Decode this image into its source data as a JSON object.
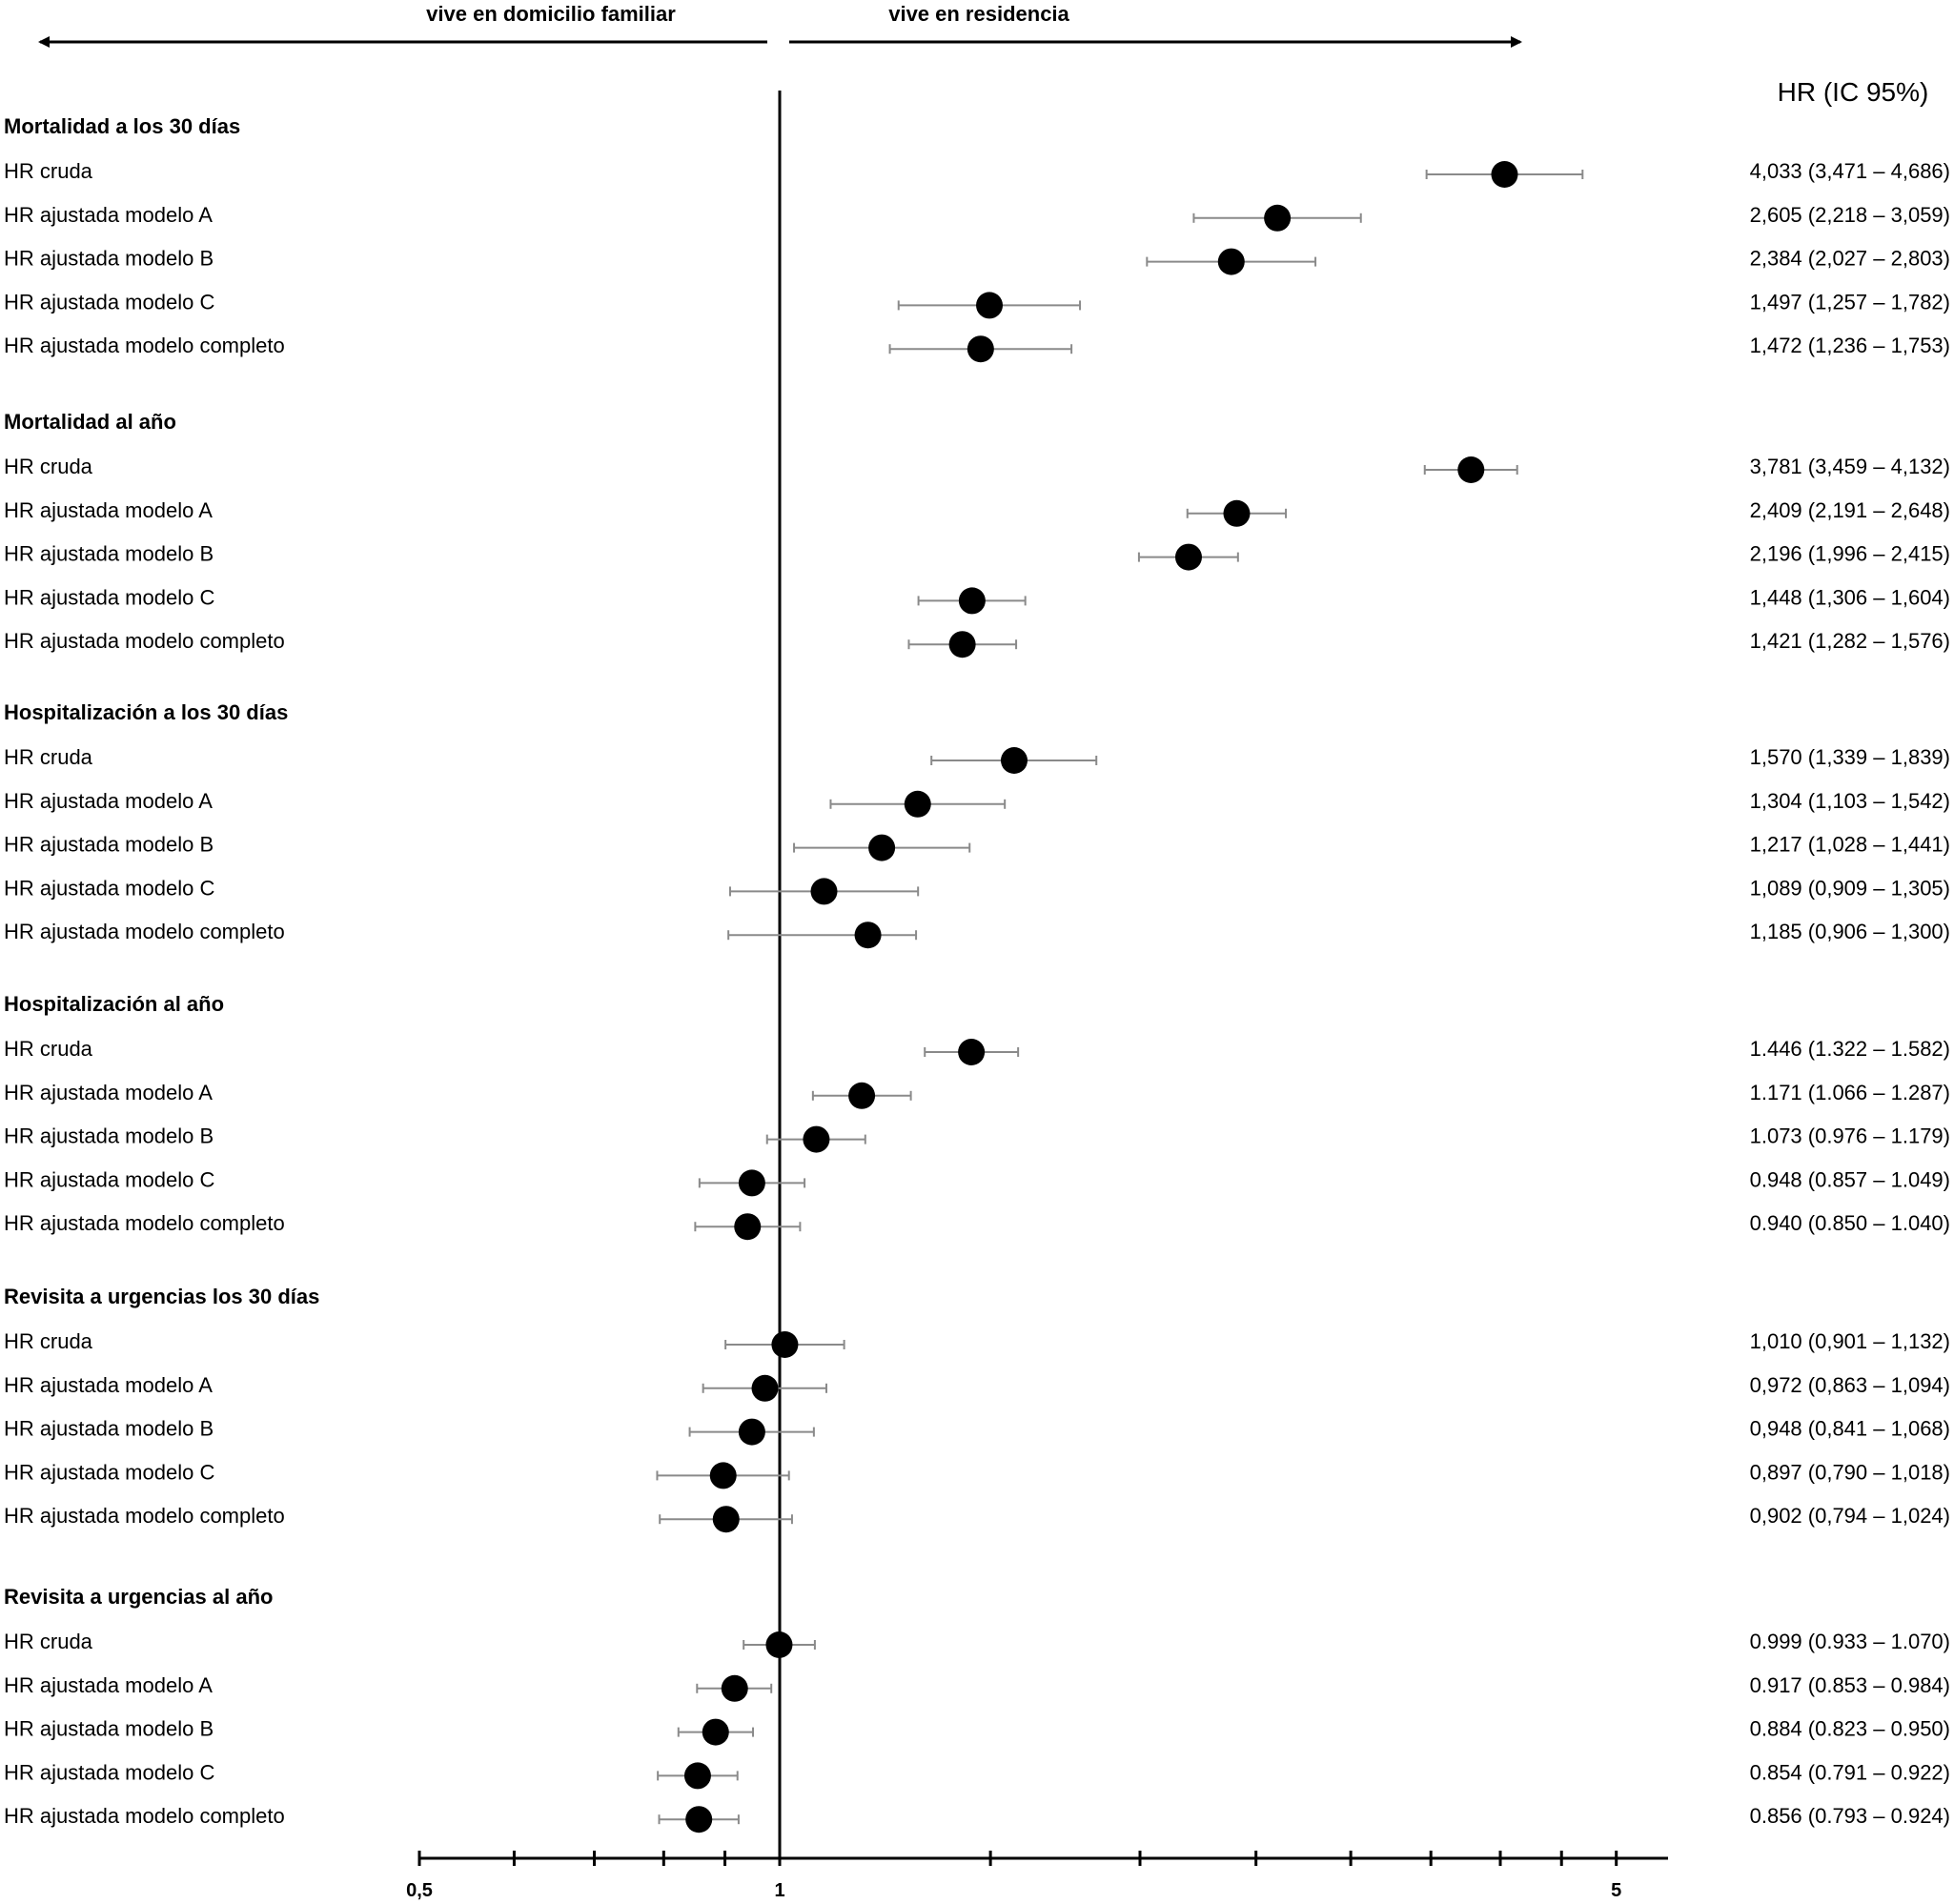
{
  "chart_data": {
    "type": "forest",
    "direction_left": "vive en domicilio familiar",
    "direction_right": "vive en residencia",
    "column_title": "HR (IC 95%)",
    "x_scale": "log",
    "xlim": [
      0.5,
      6.5
    ],
    "reference_value": 1,
    "x_tick_values": [
      0.5,
      0.6,
      0.7,
      0.8,
      0.9,
      1,
      1.5,
      2,
      2.5,
      3,
      3.5,
      4,
      4.5,
      5
    ],
    "x_tick_labels": [
      {
        "value": 0.5,
        "label": "0,5"
      },
      {
        "value": 1,
        "label": "1"
      },
      {
        "value": 5,
        "label": "5"
      }
    ],
    "groups": [
      {
        "name": "Mortalidad a los 30 días",
        "rows": [
          {
            "label": "HR cruda",
            "hr": 4.033,
            "lo": 3.471,
            "hi": 4.686,
            "text": "4,033 (3,471 – 4,686)"
          },
          {
            "label": "HR ajustada modelo A",
            "hr": 2.605,
            "lo": 2.218,
            "hi": 3.059,
            "text": "2,605 (2,218 – 3,059)"
          },
          {
            "label": "HR ajustada modelo B",
            "hr": 2.384,
            "lo": 2.027,
            "hi": 2.803,
            "text": "2,384 (2,027 – 2,803)"
          },
          {
            "label": "HR ajustada modelo C",
            "hr": 1.497,
            "lo": 1.257,
            "hi": 1.782,
            "text": "1,497 (1,257 – 1,782)"
          },
          {
            "label": "HR ajustada modelo completo",
            "hr": 1.472,
            "lo": 1.236,
            "hi": 1.753,
            "text": "1,472 (1,236 – 1,753)"
          }
        ]
      },
      {
        "name": "Mortalidad al año",
        "rows": [
          {
            "label": "HR cruda",
            "hr": 3.781,
            "lo": 3.459,
            "hi": 4.132,
            "text": "3,781 (3,459 – 4,132)"
          },
          {
            "label": "HR ajustada modelo A",
            "hr": 2.409,
            "lo": 2.191,
            "hi": 2.648,
            "text": "2,409 (2,191 – 2,648)"
          },
          {
            "label": "HR ajustada modelo B",
            "hr": 2.196,
            "lo": 1.996,
            "hi": 2.415,
            "text": "2,196 (1,996 – 2,415)"
          },
          {
            "label": "HR ajustada modelo C",
            "hr": 1.448,
            "lo": 1.306,
            "hi": 1.604,
            "text": "1,448 (1,306 – 1,604)"
          },
          {
            "label": "HR ajustada modelo completo",
            "hr": 1.421,
            "lo": 1.282,
            "hi": 1.576,
            "text": "1,421 (1,282 – 1,576)"
          }
        ]
      },
      {
        "name": "Hospitalización a los 30 días",
        "rows": [
          {
            "label": "HR cruda",
            "hr": 1.57,
            "lo": 1.339,
            "hi": 1.839,
            "text": "1,570 (1,339 – 1,839)"
          },
          {
            "label": "HR ajustada modelo A",
            "hr": 1.304,
            "lo": 1.103,
            "hi": 1.542,
            "text": "1,304 (1,103 – 1,542)"
          },
          {
            "label": "HR ajustada modelo B",
            "hr": 1.217,
            "lo": 1.028,
            "hi": 1.441,
            "text": "1,217 (1,028 – 1,441)"
          },
          {
            "label": "HR ajustada modelo C",
            "hr": 1.089,
            "lo": 0.909,
            "hi": 1.305,
            "text": "1,089 (0,909 – 1,305)"
          },
          {
            "label": "HR ajustada modelo completo",
            "hr": 1.185,
            "lo": 0.906,
            "hi": 1.3,
            "text": "1,185 (0,906 – 1,300)"
          }
        ]
      },
      {
        "name": "Hospitalización al año",
        "rows": [
          {
            "label": "HR cruda",
            "hr": 1.446,
            "lo": 1.322,
            "hi": 1.582,
            "text": "1.446 (1.322 – 1.582)"
          },
          {
            "label": "HR ajustada modelo A",
            "hr": 1.171,
            "lo": 1.066,
            "hi": 1.287,
            "text": "1.171 (1.066 – 1.287)"
          },
          {
            "label": "HR ajustada modelo B",
            "hr": 1.073,
            "lo": 0.976,
            "hi": 1.179,
            "text": "1.073 (0.976 – 1.179)"
          },
          {
            "label": "HR ajustada modelo C",
            "hr": 0.948,
            "lo": 0.857,
            "hi": 1.049,
            "text": "0.948 (0.857 – 1.049)"
          },
          {
            "label": "HR ajustada modelo completo",
            "hr": 0.94,
            "lo": 0.85,
            "hi": 1.04,
            "text": "0.940 (0.850 – 1.040)"
          }
        ]
      },
      {
        "name": "Revisita a urgencias los 30 días",
        "rows": [
          {
            "label": "HR cruda",
            "hr": 1.01,
            "lo": 0.901,
            "hi": 1.132,
            "text": "1,010 (0,901 – 1,132)"
          },
          {
            "label": "HR ajustada modelo A",
            "hr": 0.972,
            "lo": 0.863,
            "hi": 1.094,
            "text": "0,972 (0,863 – 1,094)"
          },
          {
            "label": "HR ajustada modelo B",
            "hr": 0.948,
            "lo": 0.841,
            "hi": 1.068,
            "text": "0,948 (0,841 – 1,068)"
          },
          {
            "label": "HR ajustada modelo C",
            "hr": 0.897,
            "lo": 0.79,
            "hi": 1.018,
            "text": "0,897 (0,790 – 1,018)"
          },
          {
            "label": "HR ajustada modelo completo",
            "hr": 0.902,
            "lo": 0.794,
            "hi": 1.024,
            "text": "0,902 (0,794 – 1,024)"
          }
        ]
      },
      {
        "name": "Revisita a urgencias al año",
        "rows": [
          {
            "label": "HR cruda",
            "hr": 0.999,
            "lo": 0.933,
            "hi": 1.07,
            "text": "0.999 (0.933 – 1.070)"
          },
          {
            "label": "HR ajustada modelo A",
            "hr": 0.917,
            "lo": 0.853,
            "hi": 0.984,
            "text": "0.917 (0.853 – 0.984)"
          },
          {
            "label": "HR ajustada modelo B",
            "hr": 0.884,
            "lo": 0.823,
            "hi": 0.95,
            "text": "0.884 (0.823 – 0.950)"
          },
          {
            "label": "HR ajustada modelo C",
            "hr": 0.854,
            "lo": 0.791,
            "hi": 0.922,
            "text": "0.854 (0.791 – 0.922)"
          },
          {
            "label": "HR ajustada modelo completo",
            "hr": 0.856,
            "lo": 0.793,
            "hi": 0.924,
            "text": "0.856 (0.793 – 0.924)"
          }
        ]
      }
    ]
  }
}
